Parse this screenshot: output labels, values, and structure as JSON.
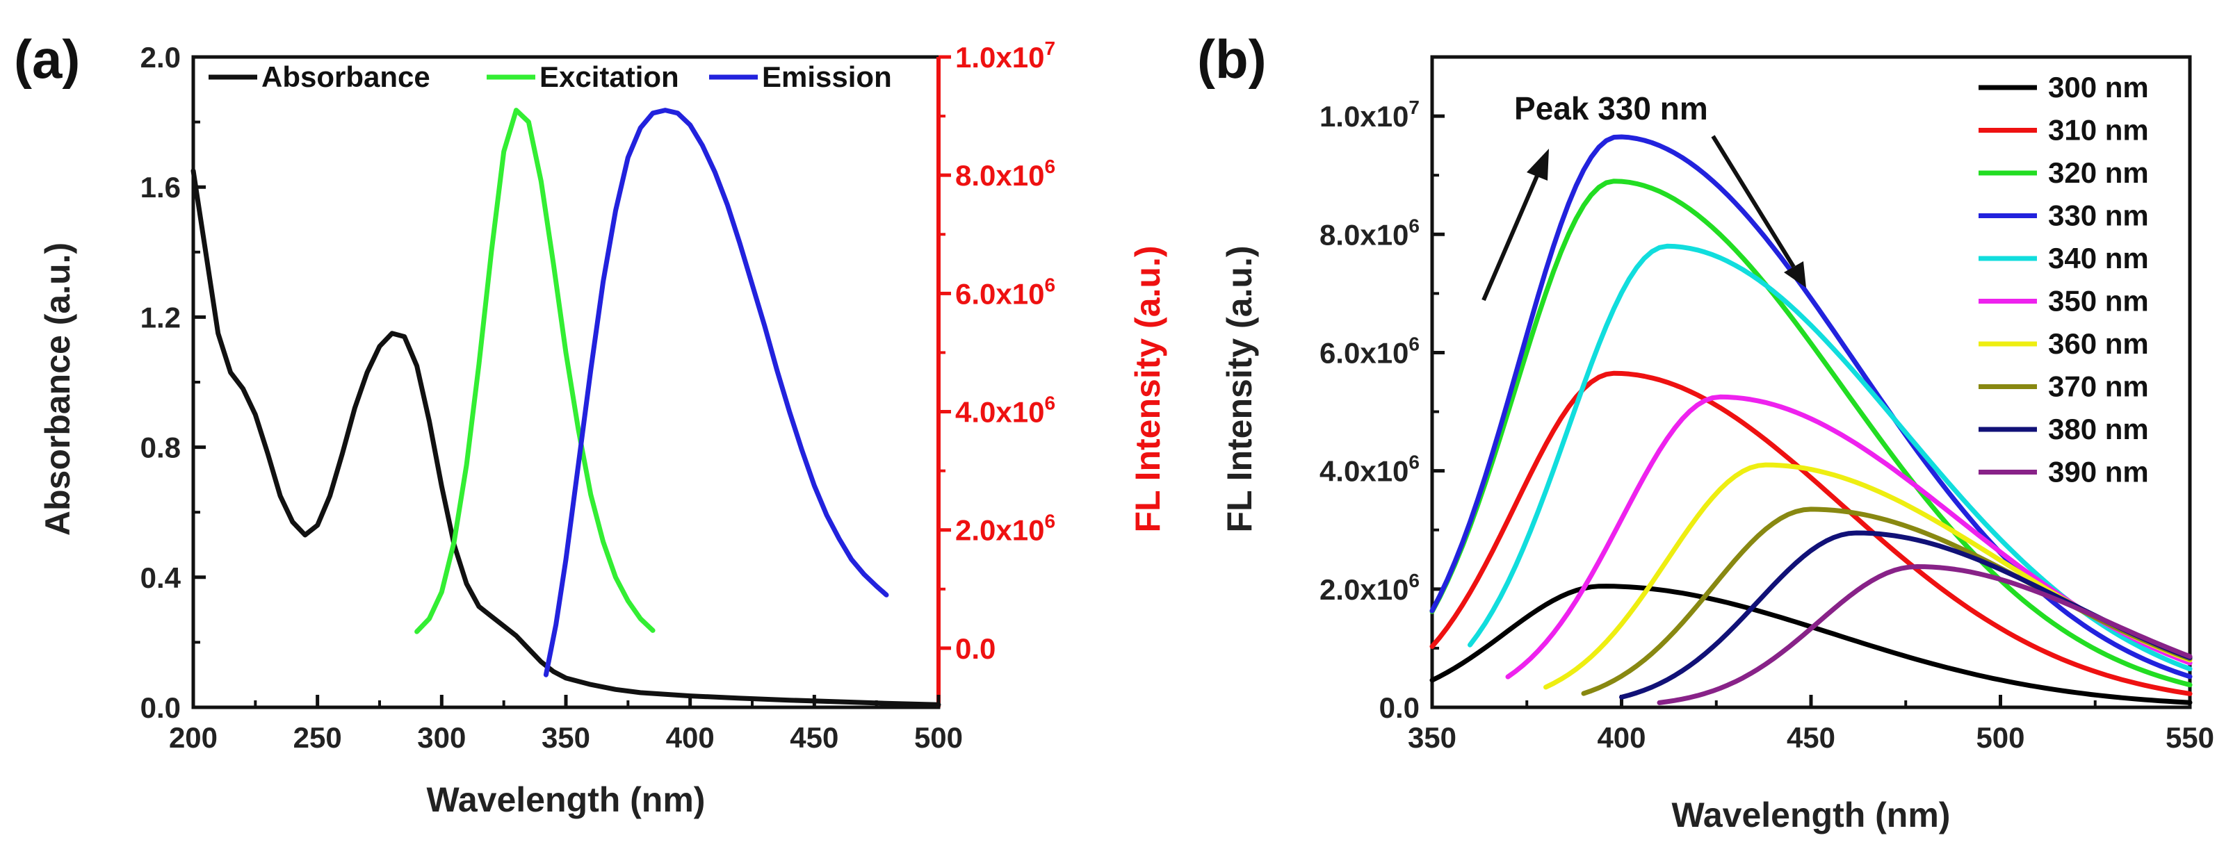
{
  "chart_data": [
    {
      "panel_label": "(a)",
      "type": "line",
      "xlabel": "Wavelength (nm)",
      "ylabel": "Absorbance (a.u.)",
      "ylabel_right": "FL Intensity (a.u.)",
      "xlim": [
        200,
        500
      ],
      "ylim": [
        0,
        2.0
      ],
      "ylim_right": [
        -1000000,
        10000000
      ],
      "x_ticks": [
        "200",
        "250",
        "300",
        "350",
        "400",
        "450",
        "500"
      ],
      "y_ticks": [
        "0.0",
        "0.4",
        "0.8",
        "1.2",
        "1.6",
        "2.0"
      ],
      "y_ticks_right": [
        "0.0",
        "2.0x10",
        "4.0x10",
        "6.0x10",
        "8.0x10",
        "1.0x10"
      ],
      "y_ticks_right_exponents": [
        "",
        "6",
        "6",
        "6",
        "6",
        "7"
      ],
      "y_ticks_right_values": [
        0,
        2000000,
        4000000,
        6000000,
        8000000,
        10000000
      ],
      "legend": [
        "Absorbance",
        "Excitation",
        "Emission"
      ],
      "series": [
        {
          "name": "Absorbance",
          "axis": "left",
          "color": "#111111",
          "x": [
            200,
            205,
            210,
            215,
            220,
            225,
            230,
            235,
            240,
            245,
            250,
            255,
            260,
            265,
            270,
            275,
            280,
            285,
            290,
            295,
            300,
            305,
            310,
            315,
            320,
            325,
            330,
            335,
            340,
            345,
            350,
            360,
            370,
            380,
            390,
            400,
            420,
            440,
            460,
            480,
            500
          ],
          "values": [
            1.65,
            1.4,
            1.15,
            1.03,
            0.98,
            0.9,
            0.78,
            0.65,
            0.57,
            0.53,
            0.56,
            0.65,
            0.78,
            0.92,
            1.03,
            1.11,
            1.15,
            1.14,
            1.05,
            0.88,
            0.68,
            0.5,
            0.38,
            0.31,
            0.28,
            0.25,
            0.22,
            0.18,
            0.14,
            0.11,
            0.09,
            0.07,
            0.055,
            0.045,
            0.04,
            0.035,
            0.028,
            0.022,
            0.017,
            0.012,
            0.008
          ]
        },
        {
          "name": "Excitation",
          "axis": "right",
          "color": "#33ee33",
          "x": [
            290,
            295,
            300,
            305,
            310,
            315,
            320,
            325,
            330,
            335,
            340,
            345,
            350,
            355,
            360,
            365,
            370,
            375,
            380,
            385
          ],
          "values": [
            280000,
            500000,
            950000,
            1800000,
            3100000,
            4800000,
            6700000,
            8400000,
            9100000,
            8900000,
            7900000,
            6500000,
            5000000,
            3700000,
            2600000,
            1800000,
            1200000,
            800000,
            500000,
            300000
          ]
        },
        {
          "name": "Emission",
          "axis": "right",
          "color": "#2222dd",
          "x": [
            342,
            346,
            350,
            355,
            360,
            365,
            370,
            375,
            380,
            385,
            390,
            395,
            400,
            405,
            410,
            415,
            420,
            425,
            430,
            435,
            440,
            445,
            450,
            455,
            460,
            465,
            470,
            475,
            479
          ],
          "values": [
            -450000,
            400000,
            1500000,
            3100000,
            4700000,
            6200000,
            7400000,
            8300000,
            8800000,
            9050000,
            9100000,
            9050000,
            8850000,
            8500000,
            8050000,
            7500000,
            6850000,
            6150000,
            5450000,
            4700000,
            4000000,
            3350000,
            2750000,
            2250000,
            1850000,
            1500000,
            1250000,
            1050000,
            900000
          ]
        }
      ]
    },
    {
      "panel_label": "(b)",
      "type": "line",
      "xlabel": "Wavelength (nm)",
      "ylabel": "FL Intensity (a.u.)",
      "xlim": [
        350,
        550
      ],
      "ylim": [
        0,
        11000000
      ],
      "x_ticks": [
        "350",
        "400",
        "450",
        "500",
        "550"
      ],
      "y_ticks": [
        "0.0",
        "2.0x10",
        "4.0x10",
        "6.0x10",
        "8.0x10",
        "1.0x10"
      ],
      "y_tick_exponents": [
        "",
        "6",
        "6",
        "6",
        "6",
        "7"
      ],
      "y_tick_values": [
        0,
        2000000,
        4000000,
        6000000,
        8000000,
        10000000
      ],
      "annotation": "Peak 330 nm",
      "series": [
        {
          "name": "300 nm",
          "color": "#000000",
          "start": 350,
          "peak_x": 395,
          "peak_y": 2050000,
          "end_y": 80000
        },
        {
          "name": "310 nm",
          "color": "#ee1111",
          "start": 350,
          "peak_x": 398,
          "peak_y": 5650000,
          "end_y": 230000
        },
        {
          "name": "320 nm",
          "color": "#22dd22",
          "start": 350,
          "peak_x": 398,
          "peak_y": 8900000,
          "end_y": 380000
        },
        {
          "name": "330 nm",
          "color": "#2222dd",
          "start": 350,
          "peak_x": 399,
          "peak_y": 9650000,
          "end_y": 520000
        },
        {
          "name": "340 nm",
          "color": "#11dddd",
          "start": 360,
          "peak_x": 412,
          "peak_y": 7800000,
          "end_y": 650000
        },
        {
          "name": "350 nm",
          "color": "#ee22ee",
          "start": 370,
          "peak_x": 426,
          "peak_y": 5250000,
          "end_y": 750000
        },
        {
          "name": "360 nm",
          "color": "#eeee11",
          "start": 380,
          "peak_x": 438,
          "peak_y": 4100000,
          "end_y": 800000
        },
        {
          "name": "370 nm",
          "color": "#888811",
          "start": 390,
          "peak_x": 450,
          "peak_y": 3350000,
          "end_y": 820000
        },
        {
          "name": "380 nm",
          "color": "#111177",
          "start": 400,
          "peak_x": 462,
          "peak_y": 2950000,
          "end_y": 840000
        },
        {
          "name": "390 nm",
          "color": "#882288",
          "start": 410,
          "peak_x": 478,
          "peak_y": 2380000,
          "end_y": 860000
        }
      ]
    }
  ]
}
